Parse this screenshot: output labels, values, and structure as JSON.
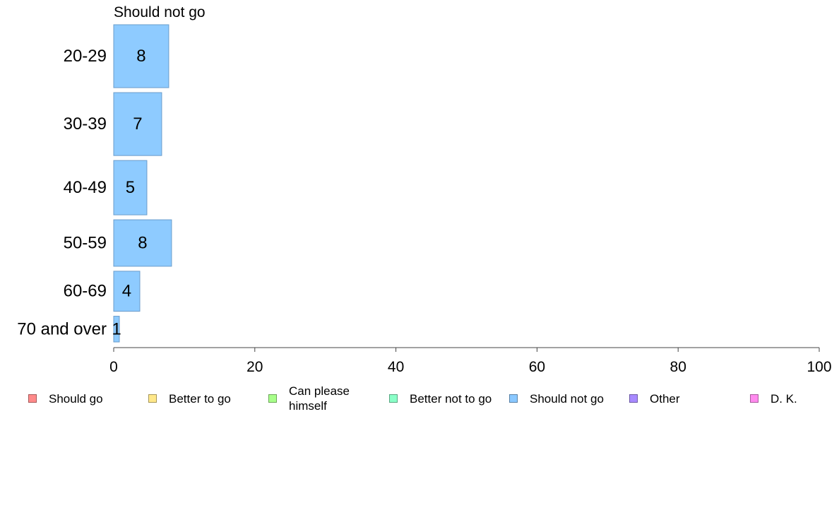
{
  "chart_data": {
    "type": "bar",
    "orientation": "horizontal",
    "title": "Should not go",
    "xlabel": "",
    "ylabel": "",
    "xlim": [
      0,
      100
    ],
    "x_ticks": [
      0,
      20,
      40,
      60,
      80,
      100
    ],
    "grid": false,
    "categories": [
      "20-29",
      "30-39",
      "40-49",
      "50-59",
      "60-69",
      "70 and over"
    ],
    "category_weights": [
      88,
      88,
      76,
      65,
      56,
      36
    ],
    "series": [
      {
        "name": "Should not go",
        "color": "#8ecbff",
        "values": [
          7.8,
          6.8,
          4.7,
          8.2,
          3.7,
          0.8
        ],
        "labels": [
          "8",
          "7",
          "5",
          "8",
          "4",
          "1"
        ]
      }
    ],
    "legend": {
      "position": "bottom",
      "items": [
        {
          "label": "Should go",
          "color": "#ff8a8a"
        },
        {
          "label": "Better to go",
          "color": "#ffe88a"
        },
        {
          "label": "Can please\nhimself",
          "color": "#a8ff8a"
        },
        {
          "label": "Better not to go",
          "color": "#8affc8"
        },
        {
          "label": "Should not go",
          "color": "#8ac8ff"
        },
        {
          "label": "Other",
          "color": "#a88aff"
        },
        {
          "label": "D. K.",
          "color": "#ff8aee"
        }
      ]
    }
  }
}
